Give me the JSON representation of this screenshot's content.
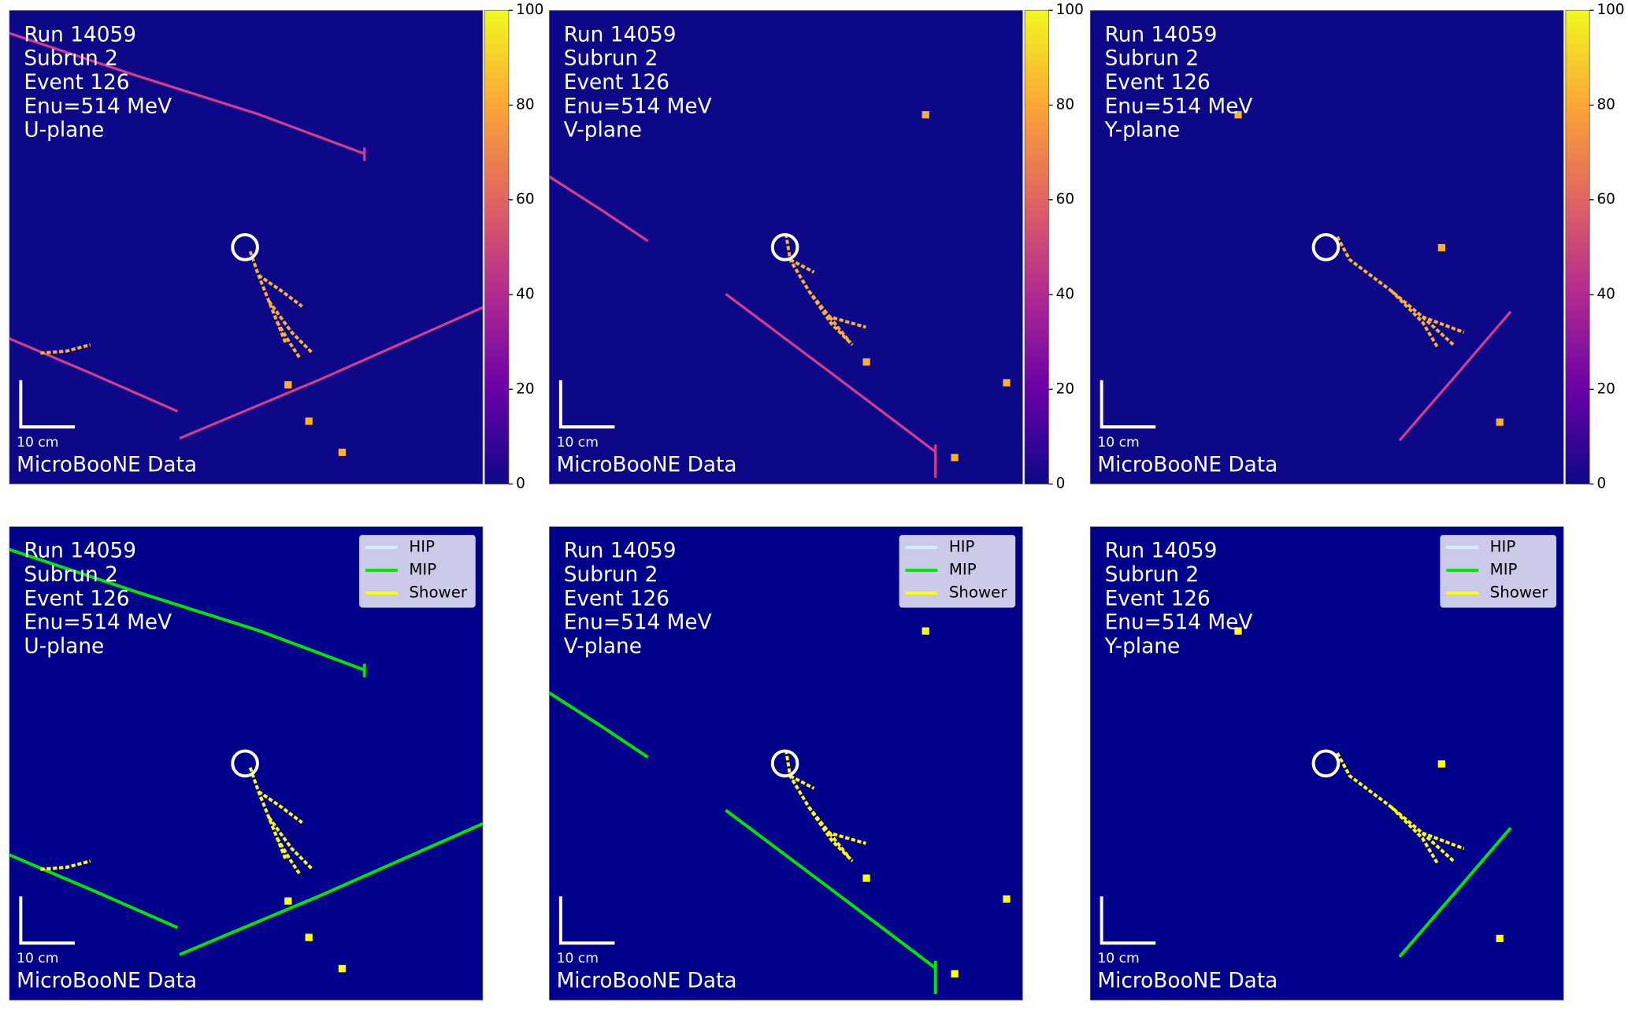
{
  "panels": [
    {
      "info": [
        "Run 14059",
        "Subrun 2",
        "Event 126",
        "Enu=514 MeV",
        "U-plane"
      ],
      "scale_label": "10 cm",
      "data_label": "MicroBooNE Data",
      "colorbar": {
        "range": [
          0,
          100
        ],
        "ticks": [
          0,
          20,
          40,
          60,
          80,
          100
        ]
      }
    },
    {
      "info": [
        "Run 14059",
        "Subrun 2",
        "Event 126",
        "Enu=514 MeV",
        "V-plane"
      ],
      "scale_label": "10 cm",
      "data_label": "MicroBooNE Data",
      "colorbar": {
        "range": [
          0,
          100
        ],
        "ticks": [
          0,
          20,
          40,
          60,
          80,
          100
        ]
      }
    },
    {
      "info": [
        "Run 14059",
        "Subrun 2",
        "Event 126",
        "Enu=514 MeV",
        "Y-plane"
      ],
      "scale_label": "10 cm",
      "data_label": "MicroBooNE Data",
      "colorbar": {
        "range": [
          0,
          100
        ],
        "ticks": [
          0,
          20,
          40,
          60,
          80,
          100
        ]
      }
    },
    {
      "info": [
        "Run 14059",
        "Subrun 2",
        "Event 126",
        "Enu=514 MeV",
        "U-plane"
      ],
      "scale_label": "10 cm",
      "data_label": "MicroBooNE Data",
      "legend": [
        {
          "label": "HIP",
          "color": "#d6ecff"
        },
        {
          "label": "MIP",
          "color": "#00e600"
        },
        {
          "label": "Shower",
          "color": "#ffff00"
        }
      ]
    },
    {
      "info": [
        "Run 14059",
        "Subrun 2",
        "Event 126",
        "Enu=514 MeV",
        "V-plane"
      ],
      "scale_label": "10 cm",
      "data_label": "MicroBooNE Data",
      "legend": [
        {
          "label": "HIP",
          "color": "#d6ecff"
        },
        {
          "label": "MIP",
          "color": "#00e600"
        },
        {
          "label": "Shower",
          "color": "#ffff00"
        }
      ]
    },
    {
      "info": [
        "Run 14059",
        "Subrun 2",
        "Event 126",
        "Enu=514 MeV",
        "Y-plane"
      ],
      "scale_label": "10 cm",
      "data_label": "MicroBooNE Data",
      "legend": [
        {
          "label": "HIP",
          "color": "#d6ecff"
        },
        {
          "label": "MIP",
          "color": "#00e600"
        },
        {
          "label": "Shower",
          "color": "#ffff00"
        }
      ]
    }
  ]
}
